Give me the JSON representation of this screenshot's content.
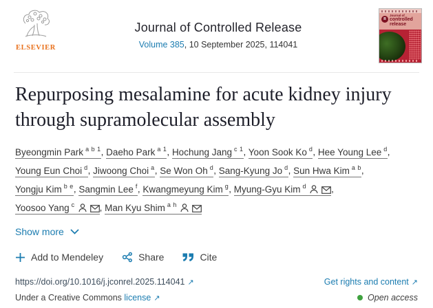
{
  "publisher": {
    "wordmark": "ELSEVIER"
  },
  "journal": {
    "title": "Journal of Controlled Release",
    "volume_label": "Volume 385",
    "issue_rest": ", 10 September 2025, 114041",
    "cover": {
      "logo_letter": "R",
      "line1": "Journal of",
      "line2": "controlled",
      "line3": "release"
    }
  },
  "article": {
    "title": "Repurposing mesalamine for acute kidney injury through supramolecular assembly",
    "author_separator": ", ",
    "authors": [
      {
        "name": "Byeongmin Park",
        "sup": "a b 1",
        "corresponding": false
      },
      {
        "name": "Daeho Park",
        "sup": "a 1",
        "corresponding": false
      },
      {
        "name": "Hochung Jang",
        "sup": "c 1",
        "corresponding": false
      },
      {
        "name": "Yoon Sook Ko",
        "sup": "d",
        "corresponding": false
      },
      {
        "name": "Hee Young Lee",
        "sup": "d",
        "corresponding": false
      },
      {
        "name": "Young Eun Choi",
        "sup": "d",
        "corresponding": false
      },
      {
        "name": "Jiwoong Choi",
        "sup": "a",
        "corresponding": false
      },
      {
        "name": "Se Won Oh",
        "sup": "d",
        "corresponding": false
      },
      {
        "name": "Sang-Kyung Jo",
        "sup": "d",
        "corresponding": false
      },
      {
        "name": "Sun Hwa Kim",
        "sup": "a b",
        "corresponding": false
      },
      {
        "name": "Yongju Kim",
        "sup": "b e",
        "corresponding": false
      },
      {
        "name": "Sangmin Lee",
        "sup": "f",
        "corresponding": false
      },
      {
        "name": "Kwangmeyung Kim",
        "sup": "g",
        "corresponding": false
      },
      {
        "name": "Myung-Gyu Kim",
        "sup": "d",
        "corresponding": true
      },
      {
        "name": "Yoosoo Yang",
        "sup": "c",
        "corresponding": true
      },
      {
        "name": "Man Kyu Shim",
        "sup": "a h",
        "corresponding": true
      }
    ],
    "show_more": "Show more"
  },
  "actions": {
    "add_to_mendeley": "Add to Mendeley",
    "share": "Share",
    "cite": "Cite"
  },
  "footer": {
    "doi": "https://doi.org/10.1016/j.jconrel.2025.114041",
    "rights": "Get rights and content",
    "cc_prefix": "Under a Creative Commons",
    "cc_link": "license",
    "open_access": "Open access"
  },
  "icons": {
    "external_arrow": "↗"
  },
  "colors": {
    "link_blue": "#1b7cb0",
    "elsevier_orange": "#e9711c",
    "open_access_green": "#3fa23f",
    "cover_red": "#b62234"
  }
}
